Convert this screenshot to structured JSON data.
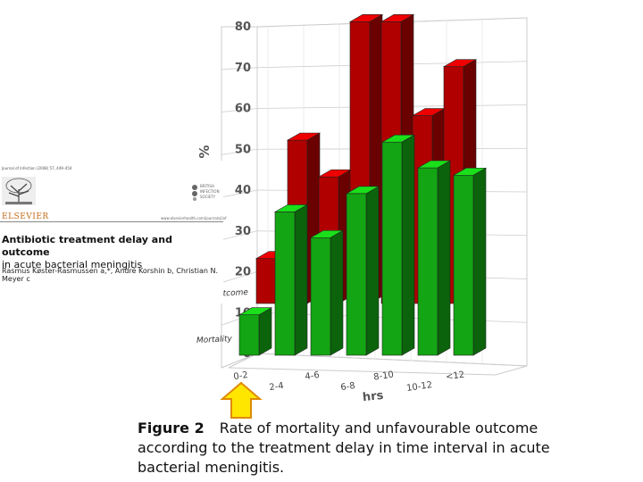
{
  "chart_data": {
    "type": "bar",
    "categories": [
      "0-2",
      "2-4",
      "4-6",
      "6-8",
      "8-10",
      "10-12",
      "<12"
    ],
    "series": [
      {
        "name": "Unfavorabel outcome",
        "color": "#b00000",
        "values": [
          11,
          40,
          31,
          69,
          69,
          46,
          58
        ]
      },
      {
        "name": "Mortality",
        "color": "#13a513",
        "values": [
          11,
          39,
          32,
          44,
          58,
          51,
          49
        ]
      }
    ],
    "ylabel": "%",
    "xlabel": "hrs",
    "ylim": [
      0,
      80
    ],
    "yticks": [
      0,
      10,
      20,
      30,
      40,
      50,
      60,
      70,
      80
    ],
    "depth_labels": [
      "Unfavorabel outcome",
      "Mortality"
    ]
  },
  "paper": {
    "journal_ref": "Journal of Infection (2008) 57, 449–454",
    "publisher": "ELSEVIER",
    "society": "BRITISH INFECTION SOCIETY",
    "weblink": "www.elsevierhealth.com/journals/jinf",
    "title_line1": "Antibiotic treatment delay and outcome",
    "title_line2": "in acute bacterial meningitis",
    "authors": "Rasmus Køster-Rasmussen a,*, André Korshin b, Christian N. Meyer c"
  },
  "caption": {
    "label": "Figure 2",
    "text": "Rate of mortality and unfavourable outcome according to the treatment delay in time interval in acute bacterial meningitis."
  },
  "colors": {
    "arrow_fill": "#ffe600",
    "arrow_stroke": "#e08a00",
    "grid": "#cccccc"
  }
}
